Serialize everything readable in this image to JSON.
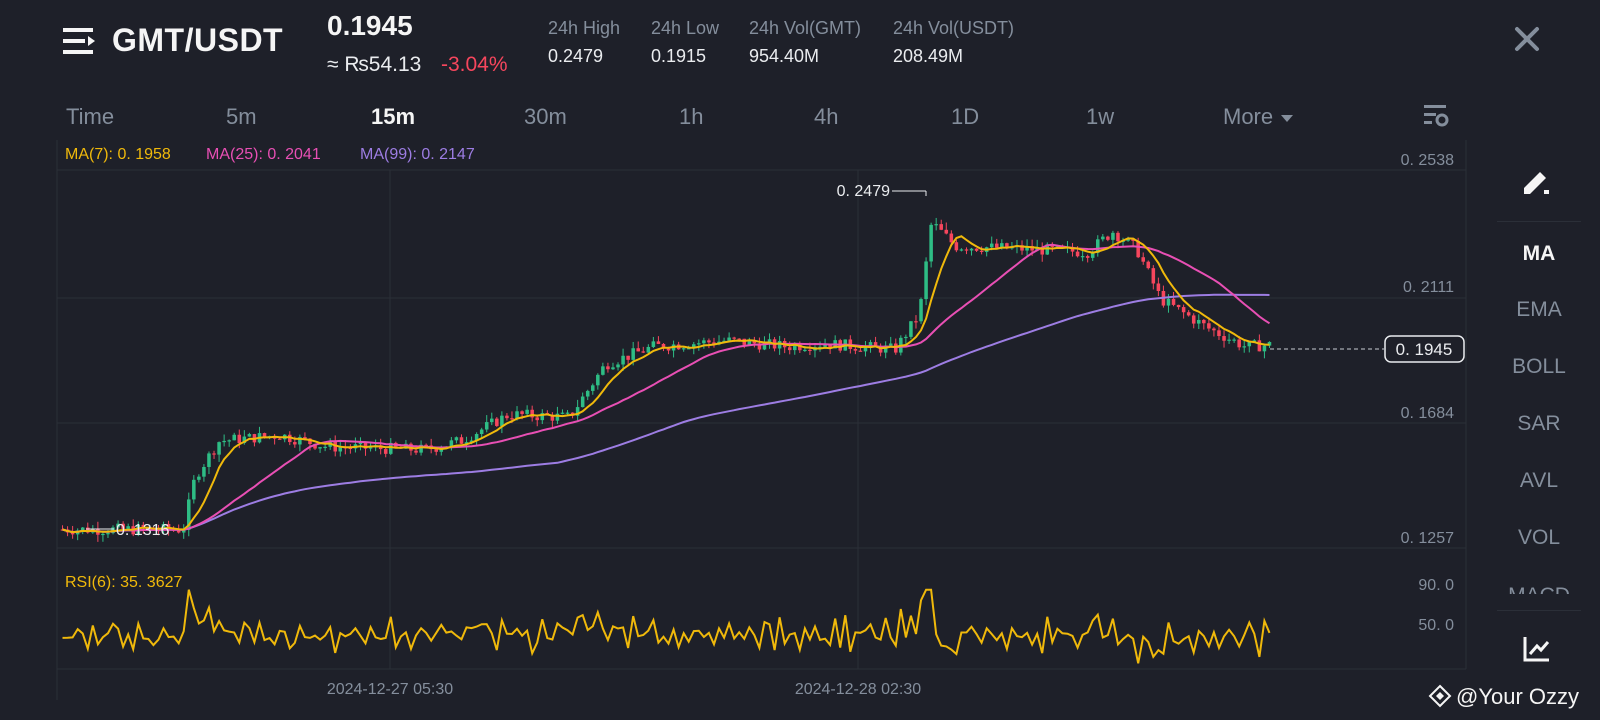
{
  "header": {
    "pair": "GMT/USDT",
    "price": "0.1945",
    "fiat_price": "≈ ₨54.13",
    "change": "-3.04%",
    "stats": [
      {
        "label": "24h High",
        "value": "0.2479"
      },
      {
        "label": "24h Low",
        "value": "0.1915"
      },
      {
        "label": "24h Vol(GMT)",
        "value": "954.40M"
      },
      {
        "label": "24h Vol(USDT)",
        "value": "208.49M"
      }
    ]
  },
  "timeframes": [
    "Time",
    "5m",
    "15m",
    "30m",
    "1h",
    "4h",
    "1D",
    "1w",
    "More"
  ],
  "active_timeframe": "15m",
  "indicators": {
    "ma7": "MA(7): 0. 1958",
    "ma25": "MA(25): 0. 2041",
    "ma99": "MA(99): 0. 2147",
    "rsi": "RSI(6): 35. 3627"
  },
  "price_axis": [
    "0. 2538",
    "0. 2111",
    "0. 1684",
    "0. 1257"
  ],
  "rsi_axis": [
    "90. 0",
    "50. 0"
  ],
  "time_axis": [
    "2024-12-27 05:30",
    "2024-12-28 02:30"
  ],
  "annotations": {
    "high": "0. 2479",
    "low": "0. 1316",
    "current": "0. 1945"
  },
  "sidebar": {
    "items": [
      "MA",
      "EMA",
      "BOLL",
      "SAR",
      "AVL",
      "VOL",
      "MACD"
    ],
    "active": "MA"
  },
  "watermark": "@Your Ozzy",
  "colors": {
    "up": "#2ebd85",
    "down": "#f6465d",
    "ma7": "#f0b90b",
    "ma25": "#e84fb4",
    "ma99": "#9d7de3",
    "rsi": "#f0b90b"
  },
  "chart_data": {
    "type": "candlestick",
    "interval": "15m",
    "price_range": [
      0.1257,
      0.2538
    ],
    "high": 0.2479,
    "low": 0.1316,
    "last": 0.1945,
    "series": [
      {
        "name": "MA(7)",
        "last": 0.1958
      },
      {
        "name": "MA(25)",
        "last": 0.2041
      },
      {
        "name": "MA(99)",
        "last": 0.2147
      },
      {
        "name": "RSI(6)",
        "last": 35.3627
      }
    ]
  }
}
